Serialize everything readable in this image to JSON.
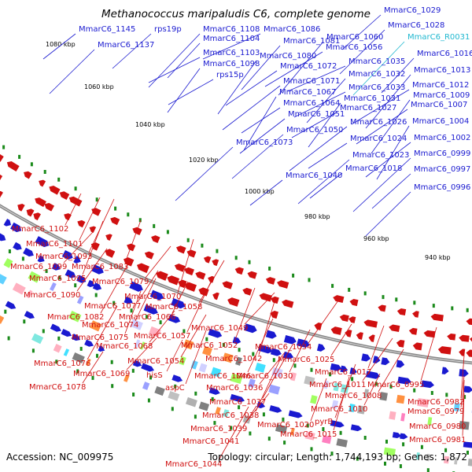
{
  "title": "Methanococcus maripaludis C6, complete genome",
  "accession": "Accession: NC_009975",
  "topology": "Topology: circular; Length: 1,744,193 bp; Genes: 1,872",
  "colors": {
    "forward": "#1a1ad0",
    "reverse": "#d01010",
    "rna": "#20b8d0",
    "backbone": "#888888",
    "tick": "#1a8a1a"
  },
  "kbp_labels": [
    "1080 kbp",
    "1060 kbp",
    "1040 kbp",
    "1020 kbp",
    "1000 kbp",
    "980 kbp",
    "960 kbp",
    "940 kbp"
  ],
  "top_labels": [
    {
      "text": "MmarC6_1145",
      "type": "forward"
    },
    {
      "text": "rps19p",
      "type": "forward"
    },
    {
      "text": "MmarC6_1137",
      "type": "forward"
    },
    {
      "text": "MmarC6_1108",
      "type": "forward"
    },
    {
      "text": "MmarC6_1086",
      "type": "forward"
    },
    {
      "text": "MmarC6_1104",
      "type": "forward"
    },
    {
      "text": "MmarC6_1081",
      "type": "forward"
    },
    {
      "text": "MmarC6_1060",
      "type": "forward"
    },
    {
      "text": "MmarC6_1103",
      "type": "forward"
    },
    {
      "text": "MmarC6_1056",
      "type": "forward"
    },
    {
      "text": "MmarC6_1098",
      "type": "forward"
    },
    {
      "text": "MmarC6_1080",
      "type": "forward"
    },
    {
      "text": "rps15p",
      "type": "forward"
    },
    {
      "text": "MmarC6_1072",
      "type": "forward"
    },
    {
      "text": "MmarC6_1071",
      "type": "forward"
    },
    {
      "text": "MmarC6_1067",
      "type": "forward"
    },
    {
      "text": "MmarC6_1064",
      "type": "forward"
    },
    {
      "text": "MmarC6_1051",
      "type": "forward"
    },
    {
      "text": "MmarC6_1050",
      "type": "forward"
    },
    {
      "text": "MmarC6_1073",
      "type": "forward"
    },
    {
      "text": "MmarC6_1040",
      "type": "forward"
    },
    {
      "text": "MmarC6_1029",
      "type": "forward"
    },
    {
      "text": "MmarC6_1028",
      "type": "forward"
    },
    {
      "text": "MmarC6_R0031",
      "type": "rna"
    },
    {
      "text": "MmarC6_1035",
      "type": "forward"
    },
    {
      "text": "MmarC6_1016",
      "type": "forward"
    },
    {
      "text": "MmarC6_1032",
      "type": "forward"
    },
    {
      "text": "MmarC6_1013",
      "type": "forward"
    },
    {
      "text": "MmarC6_1033",
      "type": "forward"
    },
    {
      "text": "MmarC6_1012",
      "type": "forward"
    },
    {
      "text": "MmarC6_1031",
      "type": "forward"
    },
    {
      "text": "MmarC6_1009",
      "type": "forward"
    },
    {
      "text": "MmarC6_1027",
      "type": "forward"
    },
    {
      "text": "MmarC6_1007",
      "type": "forward"
    },
    {
      "text": "MmarC6_1026",
      "type": "forward"
    },
    {
      "text": "MmarC6_1004",
      "type": "forward"
    },
    {
      "text": "MmarC6_1024",
      "type": "forward"
    },
    {
      "text": "MmarC6_1002",
      "type": "forward"
    },
    {
      "text": "MmarC6_1023",
      "type": "forward"
    },
    {
      "text": "MmarC6_0999",
      "type": "forward"
    },
    {
      "text": "MmarC6_1018",
      "type": "forward"
    },
    {
      "text": "MmarC6_0997",
      "type": "forward"
    },
    {
      "text": "MmarC6_0996",
      "type": "forward"
    }
  ],
  "bottom_labels": [
    {
      "text": "MmarC6_1102",
      "type": "reverse"
    },
    {
      "text": "MmarC6_1101",
      "type": "reverse"
    },
    {
      "text": "MmarC6_1093",
      "type": "reverse"
    },
    {
      "text": "MmarC6_1099",
      "type": "reverse"
    },
    {
      "text": "MmarC6_1083",
      "type": "reverse"
    },
    {
      "text": "MmarC6_1095",
      "type": "reverse"
    },
    {
      "text": "MmarC6_1079",
      "type": "reverse"
    },
    {
      "text": "MmarC6_1090",
      "type": "reverse"
    },
    {
      "text": "MmarC6_1070",
      "type": "reverse"
    },
    {
      "text": "MmarC6_1077",
      "type": "reverse"
    },
    {
      "text": "MmarC6_1058",
      "type": "reverse"
    },
    {
      "text": "MmarC6_1082",
      "type": "reverse"
    },
    {
      "text": "MmarC6_1066",
      "type": "reverse"
    },
    {
      "text": "MmarC6_1074",
      "type": "reverse"
    },
    {
      "text": "MmarC6_1057",
      "type": "reverse"
    },
    {
      "text": "MmarC6_1049",
      "type": "reverse"
    },
    {
      "text": "MmarC6_1075",
      "type": "reverse"
    },
    {
      "text": "MmarC6_1052",
      "type": "reverse"
    },
    {
      "text": "MmarC6_1068",
      "type": "reverse"
    },
    {
      "text": "MmarC6_1034",
      "type": "reverse"
    },
    {
      "text": "MmarC6_1042",
      "type": "reverse"
    },
    {
      "text": "MmarC6_1025",
      "type": "reverse"
    },
    {
      "text": "MmarC6_1054",
      "type": "reverse"
    },
    {
      "text": "MmarC6_1076",
      "type": "reverse"
    },
    {
      "text": "hisS",
      "type": "reverse"
    },
    {
      "text": "MmarC6_1030",
      "type": "reverse"
    },
    {
      "text": "MmarC6_1046",
      "type": "reverse"
    },
    {
      "text": "MmarC6_1069",
      "type": "reverse"
    },
    {
      "text": "MmarC6_1017",
      "type": "reverse"
    },
    {
      "text": "aspC",
      "type": "reverse"
    },
    {
      "text": "MmarC6_1036",
      "type": "reverse"
    },
    {
      "text": "MmarC6_1011",
      "type": "reverse"
    },
    {
      "text": "MmarC6_0995",
      "type": "reverse"
    },
    {
      "text": "MmarC6_1078",
      "type": "reverse"
    },
    {
      "text": "MmarC6_1008",
      "type": "reverse"
    },
    {
      "text": "MmarC6_1037",
      "type": "reverse"
    },
    {
      "text": "MmarC6_1010",
      "type": "reverse"
    },
    {
      "text": "MmarC6_0982",
      "type": "reverse"
    },
    {
      "text": "MmarC6_1038",
      "type": "reverse"
    },
    {
      "text": "MmarC6_0979",
      "type": "reverse"
    },
    {
      "text": "MmarC6_1020",
      "type": "reverse"
    },
    {
      "text": "pyrB",
      "type": "reverse"
    },
    {
      "text": "MmarC6_1039",
      "type": "reverse"
    },
    {
      "text": "MmarC6_0980",
      "type": "reverse"
    },
    {
      "text": "MmarC6_1015",
      "type": "reverse"
    },
    {
      "text": "MmarC6_1041",
      "type": "reverse"
    },
    {
      "text": "MmarC6_0981",
      "type": "reverse"
    },
    {
      "text": "MmarC6_1044",
      "type": "reverse"
    }
  ]
}
